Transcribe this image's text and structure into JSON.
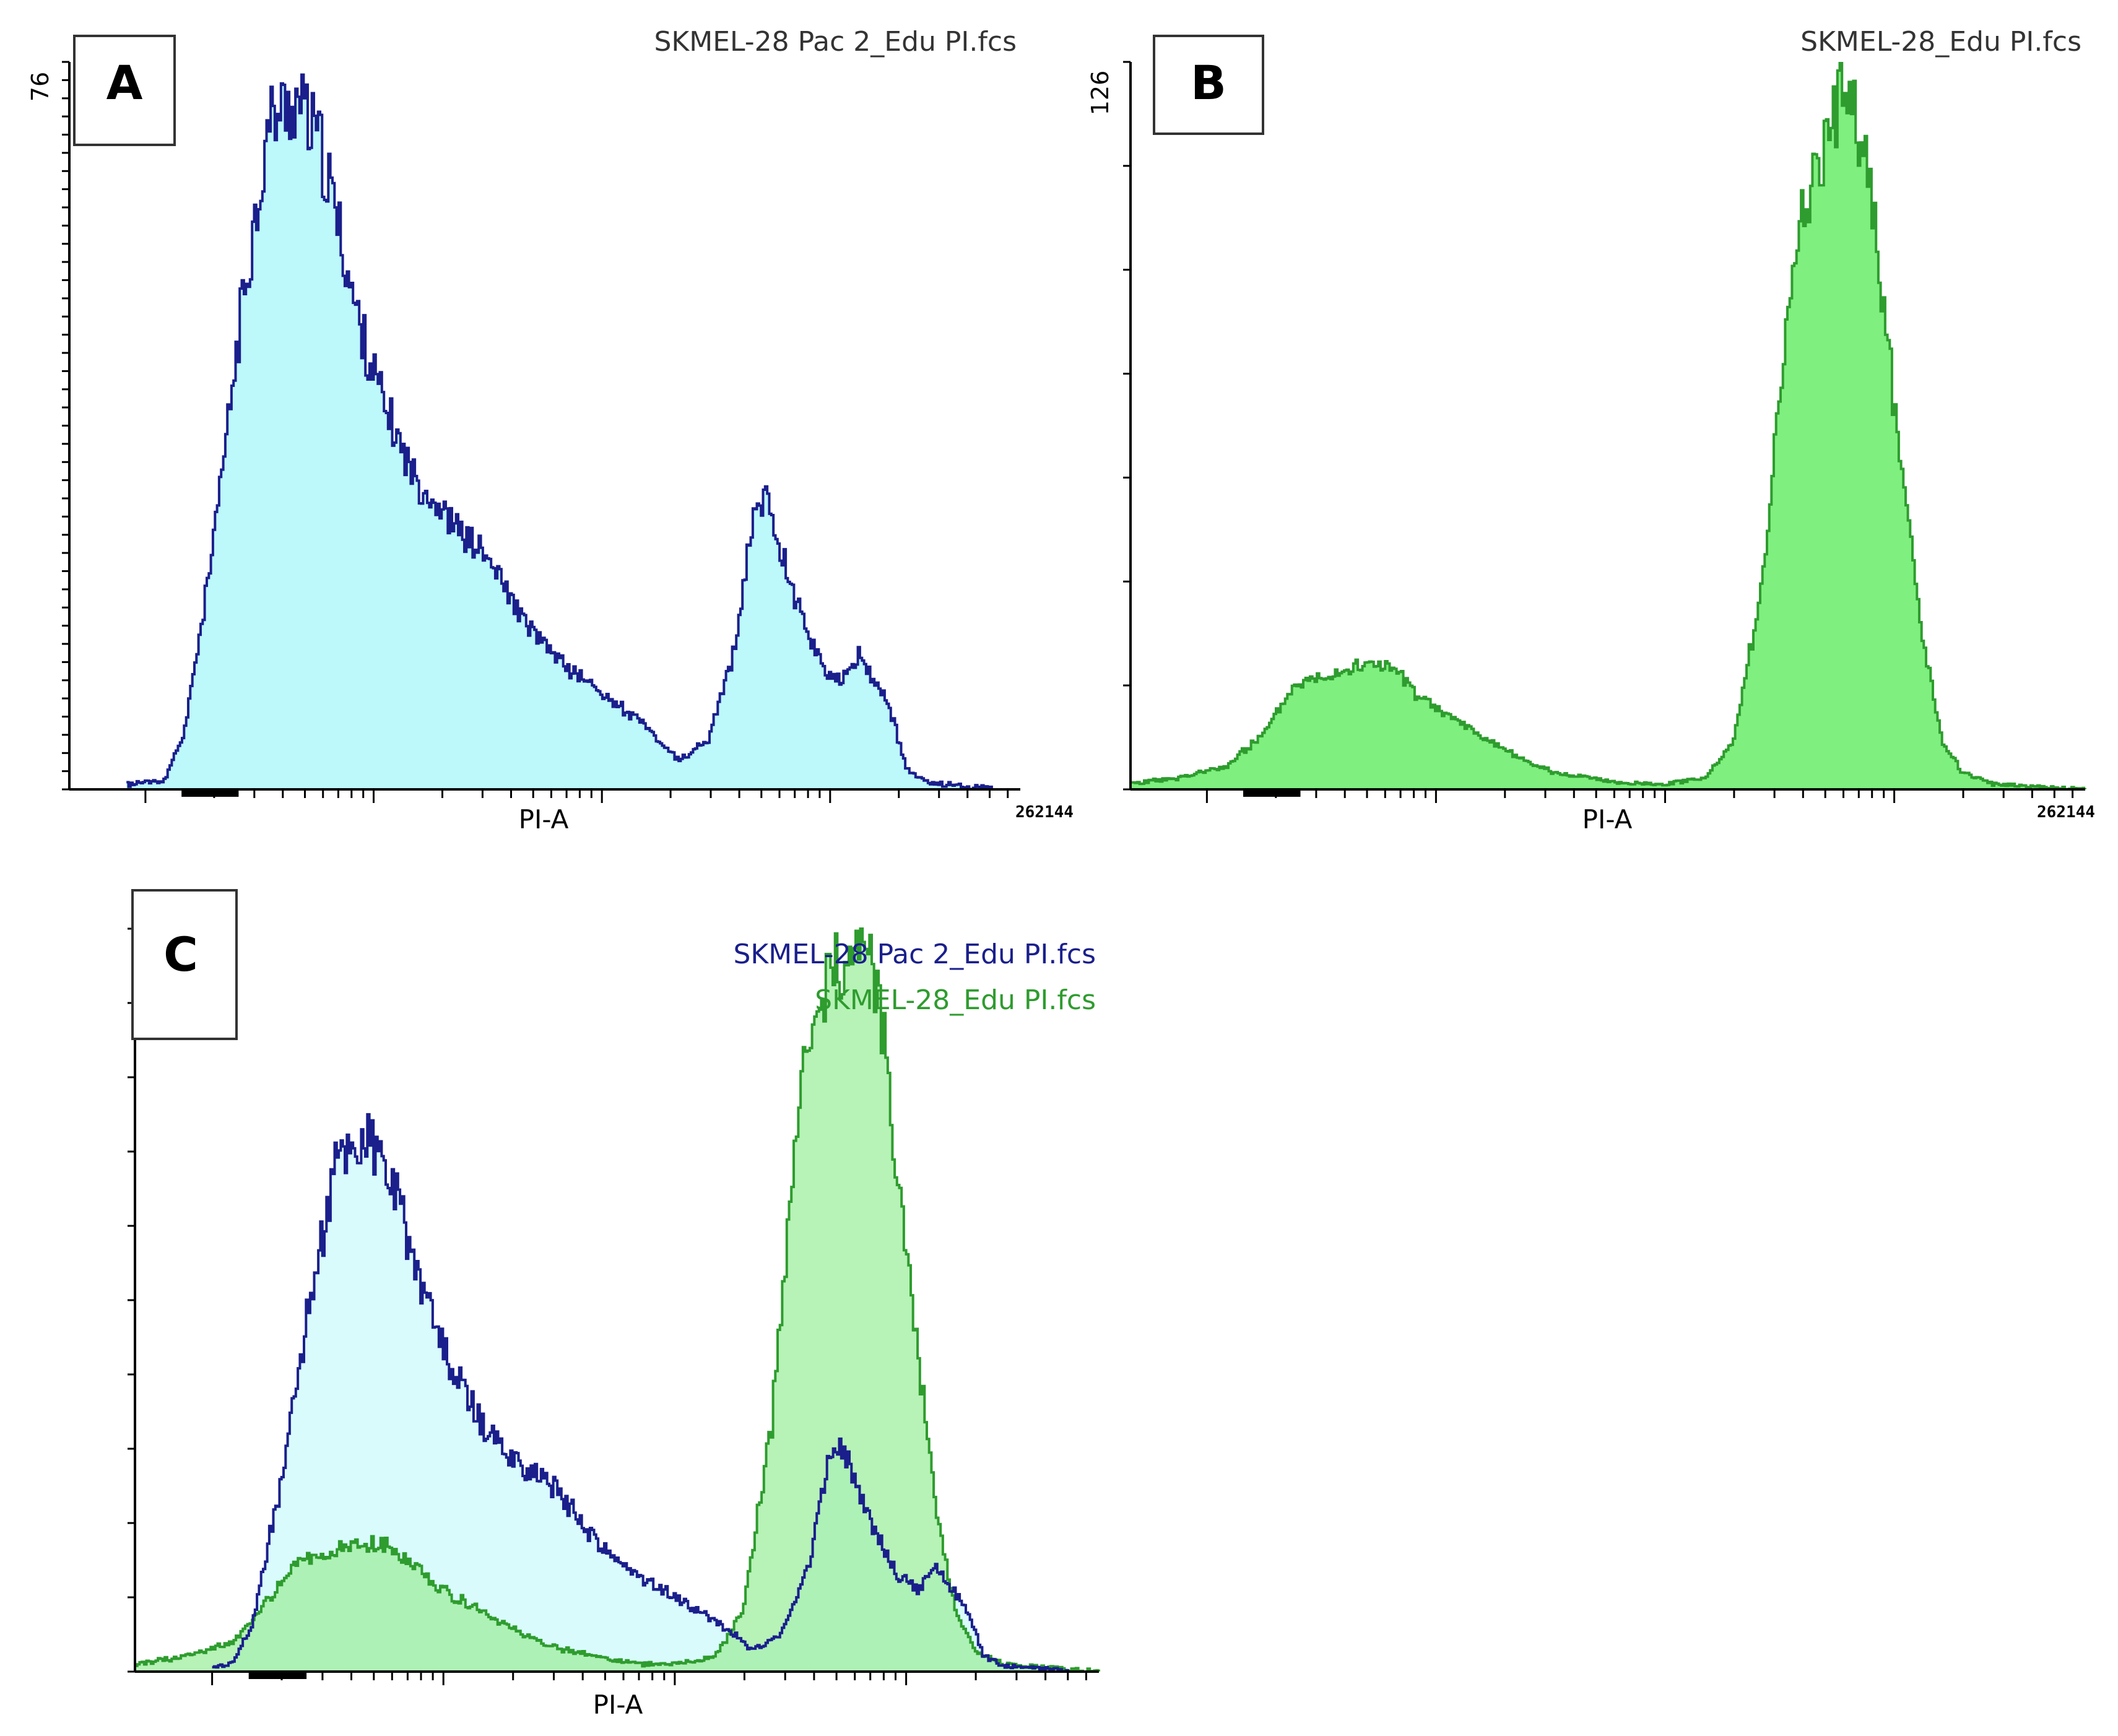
{
  "chart_data": [
    {
      "panel": "A",
      "type": "area",
      "xlabel": "PI-A",
      "x_max_label": "262144",
      "ylim": [
        0,
        76
      ],
      "y_max_label": "76",
      "files": [
        {
          "name": "SKMEL-28 Pac 2_Edu PI.fcs",
          "color": "#1a1f8c",
          "fill": "#bdf8fa"
        }
      ],
      "series": [
        {
          "name": "SKMEL-28 Pac 2_Edu PI.fcs",
          "x": [
            0.06,
            0.1,
            0.12,
            0.15,
            0.18,
            0.21,
            0.24,
            0.26,
            0.28,
            0.3,
            0.33,
            0.36,
            0.4,
            0.44,
            0.48,
            0.52,
            0.56,
            0.6,
            0.64,
            0.67,
            0.7,
            0.72,
            0.735,
            0.75,
            0.77,
            0.79,
            0.81,
            0.83,
            0.86,
            0.88,
            0.9,
            0.93,
            0.97
          ],
          "values": [
            0.5,
            1,
            6,
            25,
            50,
            70,
            72,
            68,
            60,
            50,
            40,
            33,
            28,
            24,
            17,
            13,
            10,
            7,
            3,
            5,
            15,
            30,
            30,
            24,
            18,
            13,
            11,
            14,
            9,
            2,
            0.7,
            0.5,
            0
          ]
        }
      ]
    },
    {
      "panel": "B",
      "type": "area",
      "xlabel": "PI-A",
      "x_max_label": "262144",
      "ylim": [
        0,
        126
      ],
      "y_max_label": "126",
      "files": [
        {
          "name": "SKMEL-28_Edu PI.fcs",
          "color": "#2e9c2e",
          "fill": "#7ff07f"
        }
      ],
      "series": [
        {
          "name": "SKMEL-28_Edu PI.fcs",
          "x": [
            0.0,
            0.05,
            0.1,
            0.14,
            0.17,
            0.2,
            0.23,
            0.26,
            0.28,
            0.3,
            0.33,
            0.36,
            0.4,
            0.44,
            0.48,
            0.52,
            0.56,
            0.6,
            0.63,
            0.66,
            0.68,
            0.7,
            0.72,
            0.74,
            0.75,
            0.76,
            0.775,
            0.79,
            0.81,
            0.83,
            0.85,
            0.87,
            0.9,
            0.95,
            1.0
          ],
          "values": [
            1,
            2,
            4,
            10,
            18,
            20,
            21,
            22,
            20,
            16,
            13,
            10,
            6,
            3,
            2,
            1,
            1,
            2,
            8,
            35,
            70,
            100,
            108,
            118,
            122,
            114,
            102,
            80,
            50,
            25,
            8,
            3,
            1,
            0.5,
            0
          ]
        }
      ]
    },
    {
      "panel": "C",
      "type": "area",
      "xlabel": "PI-A",
      "ylim": [
        0,
        100
      ],
      "legend": [
        "SKMEL-28 Pac 2_Edu PI.fcs",
        "SKMEL-28_Edu PI.fcs"
      ],
      "files": [
        {
          "name": "SKMEL-28 Pac 2_Edu PI.fcs",
          "color": "#1a1f8c",
          "fill": "#d9fbfc"
        },
        {
          "name": "SKMEL-28_Edu PI.fcs",
          "color": "#2e9c2e",
          "fill": "#9fee9f"
        }
      ],
      "series": [
        {
          "name": "SKMEL-28 Pac 2_Edu PI.fcs",
          "x": [
            0.08,
            0.1,
            0.12,
            0.15,
            0.18,
            0.21,
            0.24,
            0.26,
            0.28,
            0.3,
            0.33,
            0.36,
            0.4,
            0.44,
            0.48,
            0.52,
            0.56,
            0.6,
            0.64,
            0.67,
            0.7,
            0.72,
            0.735,
            0.75,
            0.77,
            0.79,
            0.81,
            0.83,
            0.86,
            0.88,
            0.9,
            0.93,
            0.97
          ],
          "values": [
            0.5,
            1,
            6,
            25,
            50,
            70,
            72,
            68,
            60,
            50,
            40,
            33,
            28,
            24,
            17,
            13,
            10,
            7,
            3,
            5,
            15,
            30,
            30,
            24,
            18,
            13,
            11,
            14,
            9,
            2,
            0.7,
            0.5,
            0
          ]
        },
        {
          "name": "SKMEL-28_Edu PI.fcs",
          "x": [
            0.0,
            0.05,
            0.1,
            0.14,
            0.17,
            0.2,
            0.23,
            0.26,
            0.28,
            0.3,
            0.33,
            0.36,
            0.4,
            0.44,
            0.48,
            0.52,
            0.56,
            0.6,
            0.63,
            0.66,
            0.68,
            0.7,
            0.72,
            0.74,
            0.75,
            0.76,
            0.775,
            0.79,
            0.81,
            0.83,
            0.85,
            0.87,
            0.9,
            0.95,
            1.0
          ],
          "values": [
            1,
            2,
            4,
            10,
            15,
            16,
            17,
            17,
            15,
            13,
            10,
            8,
            5,
            3,
            2,
            1,
            1,
            2,
            8,
            34,
            66,
            88,
            92,
            98,
            100,
            96,
            86,
            68,
            44,
            22,
            8,
            3,
            1,
            0.5,
            0
          ]
        }
      ]
    }
  ]
}
